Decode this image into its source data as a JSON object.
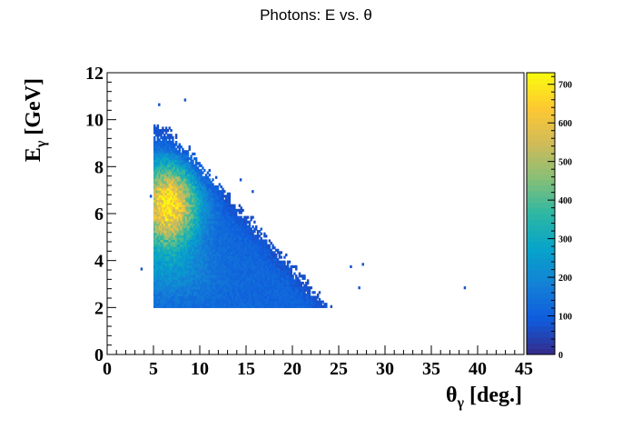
{
  "chart_data": {
    "type": "heatmap",
    "title": "Photons: E vs.  θ",
    "xlabel": {
      "main": "θ",
      "sub": "γ",
      "rest": " [deg.]"
    },
    "ylabel": {
      "main": "E",
      "sub": "γ",
      "rest": " [GeV]"
    },
    "xlim": [
      0,
      45
    ],
    "ylim": [
      0,
      12
    ],
    "zlim": [
      0,
      730
    ],
    "x_ticks": [
      "0",
      "5",
      "10",
      "15",
      "20",
      "25",
      "30",
      "35",
      "40",
      "45"
    ],
    "y_ticks": [
      "0",
      "2",
      "4",
      "6",
      "8",
      "10",
      "12"
    ],
    "z_ticks": [
      "0",
      "100",
      "200",
      "300",
      "400",
      "500",
      "600",
      "700"
    ],
    "palette": "kBird",
    "palette_colors": [
      "#352a87",
      "#0f5cdd",
      "#1481d6",
      "#06a4ca",
      "#2eb7a4",
      "#87bf77",
      "#d1bb59",
      "#fec832",
      "#f9fb0e"
    ],
    "distribution": {
      "theta_min": 5,
      "theta_max_at_E_min": 23.5,
      "theta_max_at_E_max": 6,
      "E_min": 2,
      "E_max": 9.7,
      "peak": {
        "theta": 6.5,
        "E": 6.3,
        "counts": 700
      }
    },
    "sparse_points": [
      {
        "x": 4.6,
        "y": 6.7
      },
      {
        "x": 3.6,
        "y": 3.6
      },
      {
        "x": 26.2,
        "y": 3.7
      },
      {
        "x": 27.5,
        "y": 3.8
      },
      {
        "x": 38.5,
        "y": 2.8
      },
      {
        "x": 27.1,
        "y": 2.8
      },
      {
        "x": 5.5,
        "y": 10.6
      },
      {
        "x": 8.3,
        "y": 10.8
      },
      {
        "x": 14.3,
        "y": 7.4
      },
      {
        "x": 15.6,
        "y": 6.9
      }
    ]
  }
}
